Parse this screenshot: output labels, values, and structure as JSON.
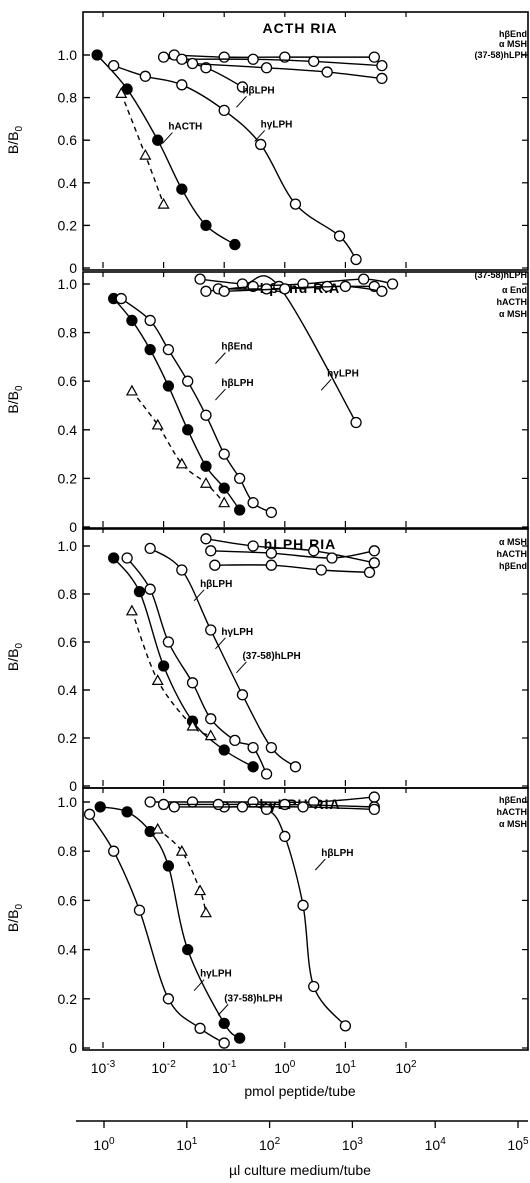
{
  "chart_data": {
    "type": "scatter",
    "x_scale": "log",
    "shared_x": {
      "label": "pmol peptide/tube",
      "ticks": [
        0.001,
        0.01,
        0.1,
        1,
        10,
        100
      ],
      "tick_labels": [
        "10-3",
        "10-2",
        "10-1",
        "100",
        "101",
        "102"
      ],
      "range": [
        0.0002,
        300
      ]
    },
    "secondary_x": {
      "label": "µl culture medium/tube",
      "ticks": [
        1,
        10,
        100,
        1000,
        10000,
        100000
      ],
      "tick_labels": [
        "100",
        "101",
        "102",
        "103",
        "104",
        "105"
      ]
    },
    "panels": [
      {
        "title": "ACTH RIA",
        "ylabel": "B/B0",
        "ylim": [
          0,
          1.1
        ],
        "yticks": [
          "0",
          "0.2",
          "0.4",
          "0.6",
          "0.8",
          "1.0"
        ],
        "series": [
          {
            "name": "hACTH",
            "marker": "filled-circle",
            "line": "solid",
            "points": [
              [
                0.0008,
                1.0
              ],
              [
                0.0025,
                0.84
              ],
              [
                0.008,
                0.6
              ],
              [
                0.02,
                0.37
              ],
              [
                0.05,
                0.2
              ],
              [
                0.15,
                0.11
              ]
            ]
          },
          {
            "name": "",
            "marker": "triangle",
            "line": "dashed",
            "points": [
              [
                0.002,
                0.82
              ],
              [
                0.005,
                0.53
              ],
              [
                0.01,
                0.3
              ]
            ]
          },
          {
            "name": "hγLPH",
            "marker": "open-circle",
            "line": "solid",
            "points": [
              [
                0.0015,
                0.95
              ],
              [
                0.005,
                0.9
              ],
              [
                0.02,
                0.86
              ],
              [
                0.1,
                0.74
              ],
              [
                0.4,
                0.58
              ],
              [
                1.5,
                0.3
              ],
              [
                8,
                0.15
              ],
              [
                15,
                0.04
              ]
            ]
          },
          {
            "name": "hβLPH",
            "marker": "open-circle",
            "line": "solid",
            "points": [
              [
                0.01,
                0.99
              ],
              [
                0.05,
                0.94
              ],
              [
                0.2,
                0.85
              ]
            ]
          },
          {
            "name": "hβEnd",
            "marker": "open-circle",
            "line": "solid",
            "points": [
              [
                0.015,
                1.0
              ],
              [
                0.1,
                0.99
              ],
              [
                1.0,
                0.99
              ],
              [
                30,
                0.99
              ]
            ]
          },
          {
            "name": "α MSH",
            "marker": "open-circle",
            "line": "solid",
            "points": [
              [
                0.02,
                0.98
              ],
              [
                0.3,
                0.98
              ],
              [
                3,
                0.97
              ],
              [
                40,
                0.95
              ]
            ]
          },
          {
            "name": "(37-58)hLPH",
            "marker": "open-circle",
            "line": "solid",
            "points": [
              [
                0.03,
                0.96
              ],
              [
                0.5,
                0.94
              ],
              [
                5,
                0.92
              ],
              [
                40,
                0.89
              ]
            ]
          }
        ],
        "labels": [
          {
            "text": "hACTH",
            "x": 0.012,
            "y": 0.65
          },
          {
            "text": "hβLPH",
            "x": 0.2,
            "y": 0.82
          },
          {
            "text": "hγLPH",
            "x": 0.4,
            "y": 0.66
          }
        ],
        "legend": [
          "hβEnd",
          "α MSH",
          "(37-58)hLPH"
        ]
      },
      {
        "title": "hβEnd RIA",
        "ylabel": "B/B0",
        "ylim": [
          0,
          1.1
        ],
        "yticks": [
          "0",
          "0.2",
          "0.4",
          "0.6",
          "0.8",
          "1.0"
        ],
        "series": [
          {
            "name": "hβEnd",
            "marker": "filled-circle",
            "line": "solid",
            "points": [
              [
                0.0015,
                0.94
              ],
              [
                0.003,
                0.85
              ],
              [
                0.006,
                0.73
              ],
              [
                0.012,
                0.58
              ],
              [
                0.025,
                0.4
              ],
              [
                0.05,
                0.25
              ],
              [
                0.1,
                0.16
              ],
              [
                0.18,
                0.07
              ]
            ]
          },
          {
            "name": "hβLPH",
            "marker": "open-circle",
            "line": "solid",
            "points": [
              [
                0.002,
                0.94
              ],
              [
                0.006,
                0.85
              ],
              [
                0.012,
                0.73
              ],
              [
                0.025,
                0.6
              ],
              [
                0.05,
                0.46
              ],
              [
                0.1,
                0.3
              ],
              [
                0.18,
                0.2
              ],
              [
                0.3,
                0.1
              ],
              [
                0.6,
                0.06
              ]
            ]
          },
          {
            "name": "",
            "marker": "triangle",
            "line": "dashed",
            "points": [
              [
                0.003,
                0.56
              ],
              [
                0.008,
                0.42
              ],
              [
                0.02,
                0.26
              ],
              [
                0.05,
                0.18
              ],
              [
                0.1,
                0.1
              ]
            ]
          },
          {
            "name": "hγLPH",
            "marker": "open-circle",
            "line": "solid",
            "points": [
              [
                0.04,
                1.02
              ],
              [
                0.2,
                1.0
              ],
              [
                0.8,
                0.99
              ],
              [
                15,
                0.43
              ]
            ]
          },
          {
            "name": "(37-58)hLPH",
            "marker": "open-circle",
            "line": "solid",
            "points": [
              [
                0.05,
                0.97
              ],
              [
                0.3,
                0.99
              ],
              [
                2,
                1.0
              ],
              [
                20,
                1.02
              ],
              [
                60,
                1.0
              ]
            ]
          },
          {
            "name": "α End",
            "marker": "open-circle",
            "line": "solid",
            "points": [
              [
                0.08,
                0.98
              ],
              [
                0.5,
                0.98
              ],
              [
                5,
                0.99
              ],
              [
                30,
                0.99
              ]
            ]
          },
          {
            "name": "α MSH",
            "marker": "open-circle",
            "line": "solid",
            "points": [
              [
                0.1,
                0.97
              ],
              [
                1,
                0.98
              ],
              [
                10,
                0.99
              ],
              [
                40,
                0.97
              ]
            ]
          }
        ],
        "labels": [
          {
            "text": "hβEnd",
            "x": 0.09,
            "y": 0.73
          },
          {
            "text": "hβLPH",
            "x": 0.09,
            "y": 0.58
          },
          {
            "text": "hγLPH",
            "x": 5,
            "y": 0.62
          }
        ],
        "legend": [
          "(37-58)hLPH",
          "α End",
          "hACTH",
          "α MSH"
        ]
      },
      {
        "title": "hLPH RIA",
        "ylabel": "B/B0",
        "ylim": [
          0,
          1.1
        ],
        "yticks": [
          "0",
          "0.2",
          "0.4",
          "0.6",
          "0.8",
          "1.0"
        ],
        "series": [
          {
            "name": "hβLPH",
            "marker": "open-circle",
            "line": "solid",
            "points": [
              [
                0.006,
                0.99
              ],
              [
                0.02,
                0.9
              ],
              [
                0.06,
                0.65
              ],
              [
                0.2,
                0.38
              ],
              [
                0.6,
                0.16
              ],
              [
                1.5,
                0.08
              ]
            ]
          },
          {
            "name": "hγLPH",
            "marker": "open-circle",
            "line": "solid",
            "points": [
              [
                0.0025,
                0.95
              ],
              [
                0.006,
                0.82
              ],
              [
                0.012,
                0.6
              ],
              [
                0.03,
                0.43
              ],
              [
                0.06,
                0.28
              ],
              [
                0.15,
                0.19
              ],
              [
                0.3,
                0.16
              ],
              [
                0.5,
                0.05
              ]
            ]
          },
          {
            "name": "(37-58)hLPH",
            "marker": "filled-circle",
            "line": "solid",
            "points": [
              [
                0.0015,
                0.95
              ],
              [
                0.004,
                0.81
              ],
              [
                0.01,
                0.5
              ],
              [
                0.03,
                0.27
              ],
              [
                0.1,
                0.15
              ],
              [
                0.3,
                0.08
              ]
            ]
          },
          {
            "name": "",
            "marker": "triangle",
            "line": "dashed",
            "points": [
              [
                0.003,
                0.73
              ],
              [
                0.008,
                0.44
              ],
              [
                0.03,
                0.25
              ],
              [
                0.06,
                0.21
              ]
            ]
          },
          {
            "name": "α MSH",
            "marker": "open-circle",
            "line": "solid",
            "points": [
              [
                0.05,
                1.03
              ],
              [
                0.3,
                1.0
              ],
              [
                3,
                0.98
              ],
              [
                30,
                0.93
              ]
            ]
          },
          {
            "name": "hACTH",
            "marker": "open-circle",
            "line": "solid",
            "points": [
              [
                0.06,
                0.98
              ],
              [
                0.6,
                0.97
              ],
              [
                6,
                0.95
              ],
              [
                30,
                0.98
              ]
            ]
          },
          {
            "name": "hβEnd",
            "marker": "open-circle",
            "line": "solid",
            "points": [
              [
                0.07,
                0.92
              ],
              [
                0.6,
                0.92
              ],
              [
                4,
                0.9
              ],
              [
                25,
                0.89
              ]
            ]
          }
        ],
        "labels": [
          {
            "text": "hβLPH",
            "x": 0.04,
            "y": 0.83
          },
          {
            "text": "hγLPH",
            "x": 0.09,
            "y": 0.63
          },
          {
            "text": "(37-58)hLPH",
            "x": 0.2,
            "y": 0.53
          }
        ],
        "legend": [
          "α MSH",
          "hACTH",
          "hβEnd"
        ]
      },
      {
        "title": "hγLPH RIA",
        "ylabel": "B/B0",
        "ylim": [
          0,
          1.1
        ],
        "yticks": [
          "0",
          "0.2",
          "0.4",
          "0.6",
          "0.8",
          "1.0"
        ],
        "series": [
          {
            "name": "hγLPH",
            "marker": "filled-circle",
            "line": "solid",
            "points": [
              [
                0.0009,
                0.98
              ],
              [
                0.0025,
                0.96
              ],
              [
                0.006,
                0.88
              ],
              [
                0.012,
                0.74
              ],
              [
                0.025,
                0.4
              ],
              [
                0.1,
                0.1
              ],
              [
                0.18,
                0.04
              ]
            ]
          },
          {
            "name": "(37-58)hLPH",
            "marker": "open-circle",
            "line": "solid",
            "points": [
              [
                0.0006,
                0.95
              ],
              [
                0.0015,
                0.8
              ],
              [
                0.004,
                0.56
              ],
              [
                0.012,
                0.2
              ],
              [
                0.04,
                0.08
              ],
              [
                0.1,
                0.02
              ]
            ]
          },
          {
            "name": "",
            "marker": "triangle",
            "line": "dashed",
            "points": [
              [
                0.008,
                0.89
              ],
              [
                0.02,
                0.8
              ],
              [
                0.04,
                0.64
              ],
              [
                0.05,
                0.55
              ]
            ]
          },
          {
            "name": "hβLPH",
            "marker": "open-circle",
            "line": "solid",
            "points": [
              [
                0.1,
                0.98
              ],
              [
                0.5,
                0.97
              ],
              [
                1,
                0.86
              ],
              [
                2,
                0.58
              ],
              [
                3,
                0.25
              ],
              [
                10,
                0.09
              ]
            ]
          },
          {
            "name": "hβEnd",
            "marker": "open-circle",
            "line": "solid",
            "points": [
              [
                0.006,
                1.0
              ],
              [
                0.03,
                1.0
              ],
              [
                0.3,
                1.0
              ],
              [
                3,
                1.0
              ],
              [
                30,
                1.02
              ]
            ]
          },
          {
            "name": "hACTH",
            "marker": "open-circle",
            "line": "solid",
            "points": [
              [
                0.01,
                0.99
              ],
              [
                0.08,
                0.99
              ],
              [
                1,
                0.99
              ],
              [
                30,
                0.98
              ]
            ]
          },
          {
            "name": "α MSH",
            "marker": "open-circle",
            "line": "solid",
            "points": [
              [
                0.015,
                0.98
              ],
              [
                0.2,
                0.98
              ],
              [
                2,
                0.98
              ],
              [
                30,
                0.97
              ]
            ]
          }
        ],
        "labels": [
          {
            "text": "hβLPH",
            "x": 4,
            "y": 0.78
          },
          {
            "text": "hγLPH",
            "x": 0.04,
            "y": 0.29
          },
          {
            "text": "(37-58)hLPH",
            "x": 0.1,
            "y": 0.19
          }
        ],
        "legend": [
          "hβEnd",
          "hACTH",
          "α MSH"
        ]
      }
    ]
  }
}
